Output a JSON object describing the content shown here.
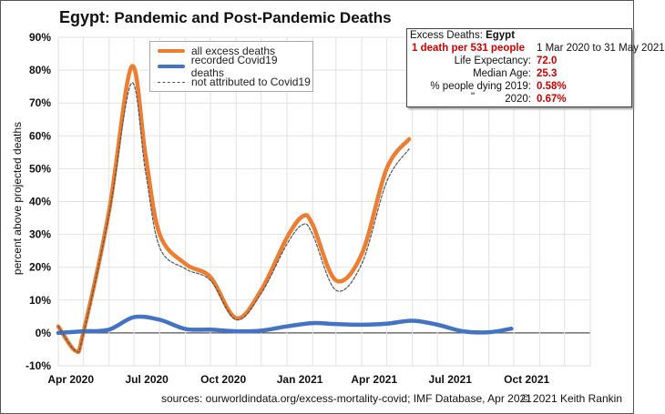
{
  "title": {
    "country": "Egypt",
    "rest": ": Pandemic and Post-Pandemic Deaths"
  },
  "legend": [
    {
      "label": "all excess deaths",
      "color": "#ed7d31",
      "style": "solid-thick"
    },
    {
      "label": "recorded Covid19 deaths",
      "color": "#4472c4",
      "style": "solid-thick"
    },
    {
      "label": "not attributed to Covid19",
      "color": "#555555",
      "style": "dashed"
    }
  ],
  "infobox": {
    "heading": "Excess Deaths: ",
    "country": "Egypt",
    "rate": "1 death per 531 people",
    "period": "1 Mar 2020 to 31 May 2021",
    "life_expectancy_label": "Life Expectancy:",
    "life_expectancy": "72.0",
    "median_age_label": "Median Age:",
    "median_age": "25.3",
    "dying_2019_label": "% people dying 2019:",
    "dying_2019": "0.58%",
    "ditto": "\"",
    "dying_2020_label": "2020:",
    "dying_2020": "0.67%"
  },
  "footer": {
    "sources": "sources:  ourworldindata.org/excess-mortality-covid;  IMF Database, Apr 2021",
    "credit": "© 2021 Keith Rankin"
  },
  "chart_data": {
    "type": "line",
    "title": "Egypt: Pandemic and Post-Pandemic Deaths",
    "xlabel": "",
    "ylabel": "percent above projected deaths",
    "xlim": [
      "2020-04-01",
      "2022-01-01"
    ],
    "ylim": [
      -10,
      90
    ],
    "yticks": [
      -10,
      0,
      10,
      20,
      30,
      40,
      50,
      60,
      70,
      80,
      90
    ],
    "ytick_format": "%",
    "xtick_labels": [
      {
        "label": "Apr 2020",
        "month": "2020-04"
      },
      {
        "label": "Jul 2020",
        "month": "2020-07"
      },
      {
        "label": "Oct 2020",
        "month": "2020-10"
      },
      {
        "label": "Jan 2021",
        "month": "2021-01"
      },
      {
        "label": "Apr 2021",
        "month": "2021-04"
      },
      {
        "label": "Jul 2021",
        "month": "2021-07"
      },
      {
        "label": "Oct 2021",
        "month": "2021-10"
      }
    ],
    "grid": true,
    "legend_position": "top-left",
    "series": [
      {
        "name": "all excess deaths",
        "color": "#ed7d31",
        "x": [
          "2020-04-01",
          "2020-04-22",
          "2020-05-01",
          "2020-06-01",
          "2020-06-28",
          "2020-07-15",
          "2020-08-01",
          "2020-09-01",
          "2020-10-01",
          "2020-11-01",
          "2020-12-01",
          "2021-01-01",
          "2021-01-20",
          "2021-02-01",
          "2021-03-01",
          "2021-04-01",
          "2021-05-01",
          "2021-05-28"
        ],
        "y": [
          2,
          -5.5,
          0,
          37,
          81,
          54,
          30,
          21,
          17,
          4.5,
          13,
          29,
          35.5,
          33,
          16,
          24,
          50,
          59
        ]
      },
      {
        "name": "recorded Covid19 deaths",
        "color": "#4472c4",
        "x": [
          "2020-04-01",
          "2020-05-01",
          "2020-06-01",
          "2020-07-01",
          "2020-08-01",
          "2020-09-01",
          "2020-10-01",
          "2020-11-01",
          "2020-12-01",
          "2021-01-01",
          "2021-02-01",
          "2021-03-01",
          "2021-04-01",
          "2021-05-01",
          "2021-06-01",
          "2021-07-01",
          "2021-08-01",
          "2021-09-01",
          "2021-09-28"
        ],
        "y": [
          0,
          0.5,
          1,
          4.8,
          4,
          1.2,
          1,
          0.5,
          0.7,
          2,
          3,
          2.7,
          2.5,
          2.8,
          3.7,
          2.5,
          0.5,
          0.2,
          1.3
        ]
      },
      {
        "name": "not attributed to Covid19",
        "color": "#555555",
        "x": [
          "2020-04-01",
          "2020-04-22",
          "2020-05-01",
          "2020-06-01",
          "2020-06-28",
          "2020-07-15",
          "2020-08-01",
          "2020-09-01",
          "2020-10-01",
          "2020-11-01",
          "2020-12-01",
          "2021-01-01",
          "2021-01-20",
          "2021-02-01",
          "2021-03-01",
          "2021-04-01",
          "2021-05-01",
          "2021-05-28"
        ],
        "y": [
          2,
          -5.5,
          -0.5,
          36,
          76,
          49,
          26,
          19.5,
          16,
          4,
          12,
          27,
          33,
          30,
          13,
          21,
          46,
          56
        ]
      }
    ]
  }
}
